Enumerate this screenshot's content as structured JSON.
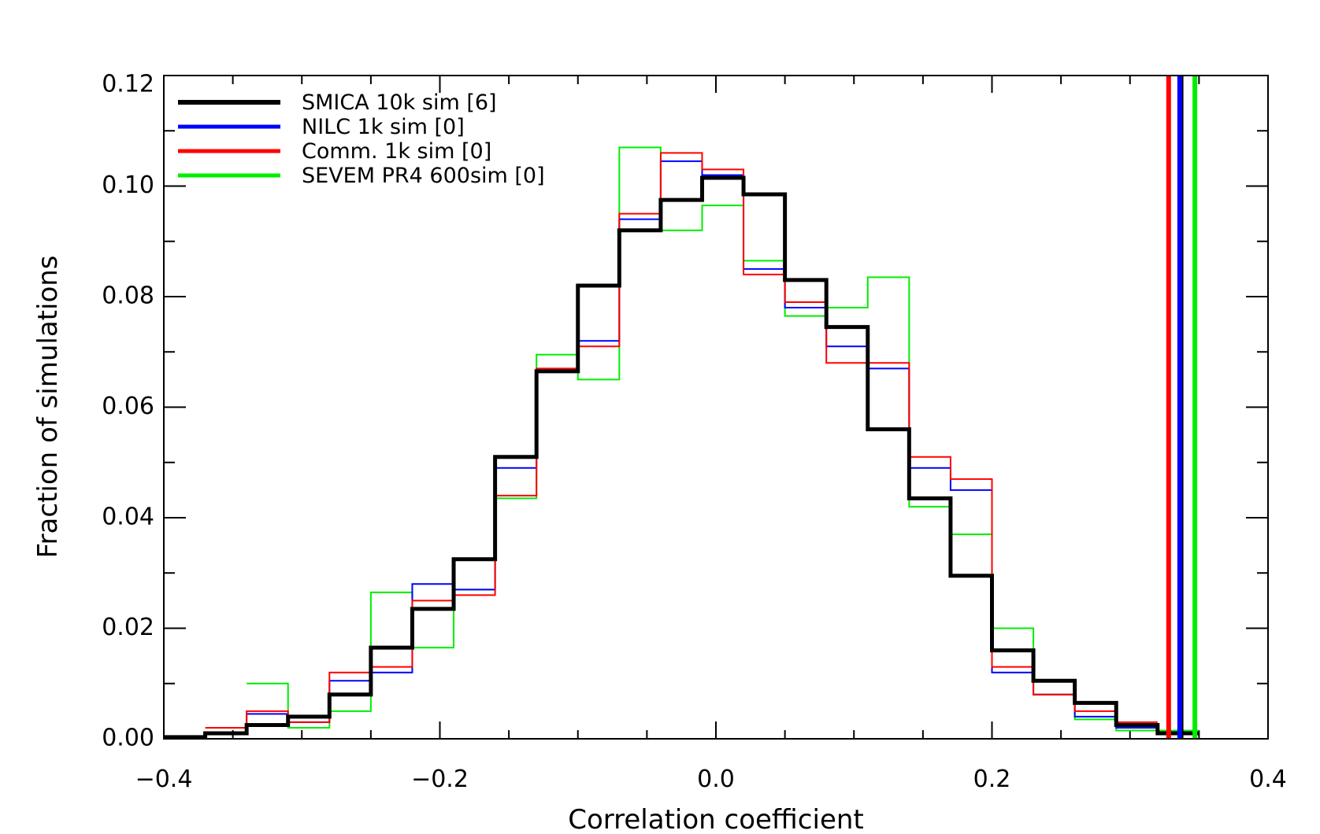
{
  "chart_data": {
    "type": "line",
    "style": "step-histogram",
    "title": "",
    "xlabel": "Correlation coefficient",
    "ylabel": "Fraction of simulations",
    "xlim": [
      -0.4,
      0.4
    ],
    "ylim": [
      0.0,
      0.12
    ],
    "x_ticks": [
      -0.4,
      -0.2,
      0.0,
      0.2,
      0.4
    ],
    "x_tick_labels": [
      "−0.4",
      "−0.2",
      "0.0",
      "0.2",
      "0.4"
    ],
    "y_ticks": [
      0.0,
      0.02,
      0.04,
      0.06,
      0.08,
      0.1,
      0.12
    ],
    "y_tick_labels": [
      "0.00",
      "0.02",
      "0.04",
      "0.06",
      "0.08",
      "0.10",
      "0.12"
    ],
    "legend_position": "top-left",
    "bin_edges": [
      -0.4,
      -0.37,
      -0.34,
      -0.31,
      -0.28,
      -0.25,
      -0.22,
      -0.19,
      -0.16,
      -0.13,
      -0.1,
      -0.07,
      -0.04,
      -0.01,
      0.02,
      0.05,
      0.08,
      0.11,
      0.14,
      0.17,
      0.2,
      0.23,
      0.26,
      0.29,
      0.32,
      0.35
    ],
    "series": [
      {
        "name": "SMICA 10k sim [6]",
        "color": "#000000",
        "width": "thick",
        "bin_start": -0.4,
        "bin_width": 0.03,
        "values": [
          0.0003,
          0.001,
          0.0025,
          0.004,
          0.008,
          0.0165,
          0.0235,
          0.0325,
          0.051,
          0.0665,
          0.082,
          0.092,
          0.0975,
          0.1015,
          0.0985,
          0.083,
          0.0745,
          0.056,
          0.0435,
          0.0295,
          0.016,
          0.0105,
          0.0065,
          0.0025,
          0.001
        ],
        "observed": 0.337
      },
      {
        "name": "NILC 1k sim [0]",
        "color": "#0000ff",
        "width": "thin",
        "bin_start": -0.37,
        "bin_width": 0.03,
        "values": [
          0.001,
          0.0045,
          0.003,
          0.0105,
          0.012,
          0.028,
          0.027,
          0.049,
          0.0665,
          0.072,
          0.094,
          0.1045,
          0.102,
          0.085,
          0.078,
          0.071,
          0.067,
          0.049,
          0.045,
          0.012,
          0.008,
          0.004,
          0.002
        ],
        "observed": 0.336
      },
      {
        "name": "Comm. 1k sim [0]",
        "color": "#ff0000",
        "width": "thin",
        "bin_start": -0.37,
        "bin_width": 0.03,
        "values": [
          0.002,
          0.005,
          0.003,
          0.012,
          0.013,
          0.025,
          0.026,
          0.044,
          0.067,
          0.071,
          0.095,
          0.106,
          0.103,
          0.084,
          0.079,
          0.068,
          0.068,
          0.051,
          0.047,
          0.013,
          0.008,
          0.005,
          0.003
        ],
        "observed": 0.328
      },
      {
        "name": "SEVEM PR4 600sim [0]",
        "color": "#00ee00",
        "width": "thin",
        "bin_start": -0.34,
        "bin_width": 0.03,
        "values": [
          0.01,
          0.002,
          0.005,
          0.0265,
          0.0165,
          0.027,
          0.0435,
          0.0695,
          0.065,
          0.107,
          0.092,
          0.0965,
          0.0865,
          0.0765,
          0.078,
          0.0835,
          0.042,
          0.037,
          0.02,
          0.008,
          0.0035,
          0.0015,
          0.0015
        ],
        "observed": 0.347
      }
    ]
  }
}
